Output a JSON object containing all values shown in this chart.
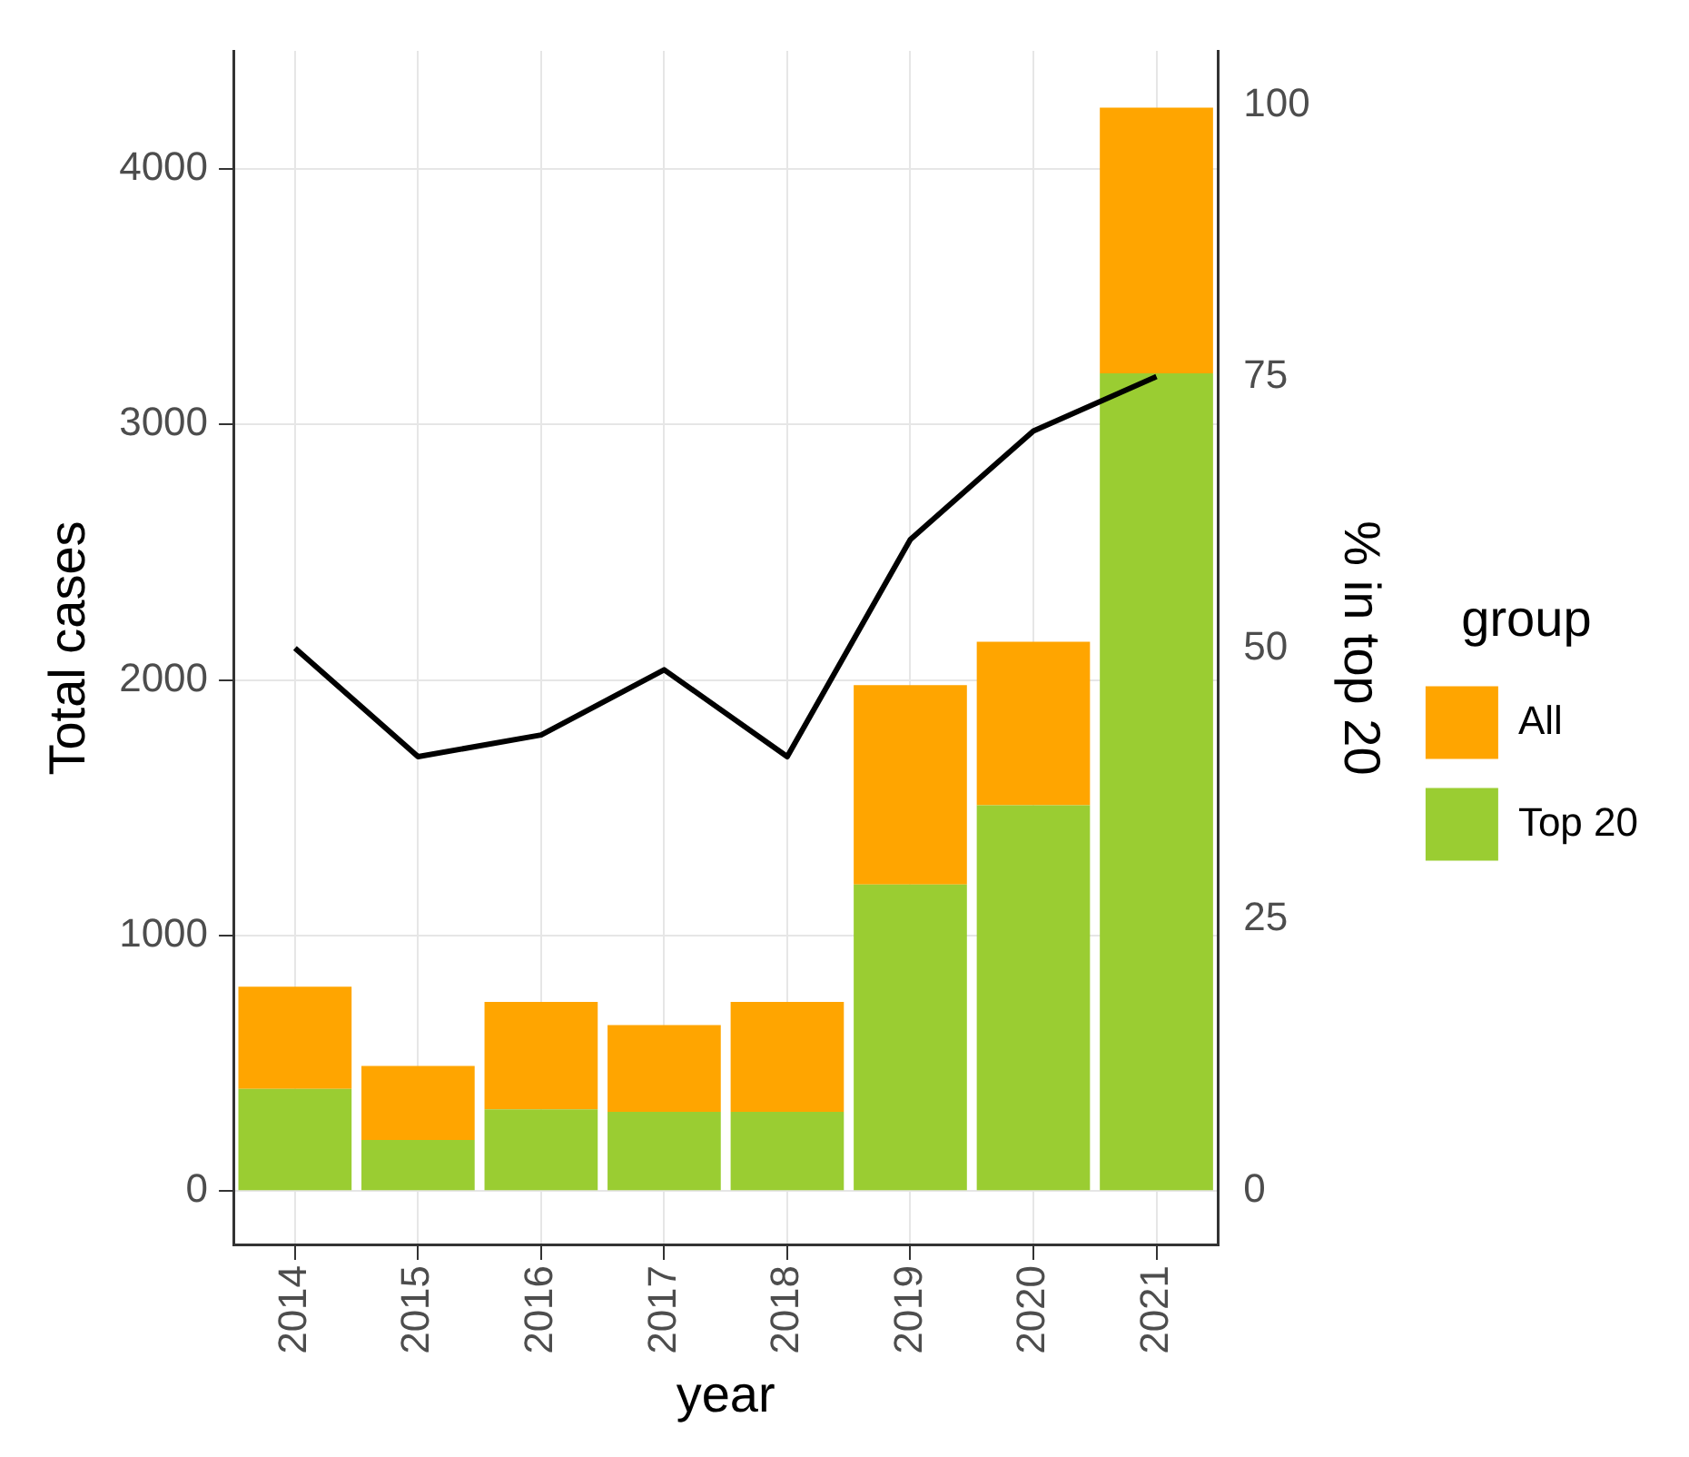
{
  "chart_data": {
    "type": "bar",
    "stacked": true,
    "xlabel": "year",
    "ylabel": "Total cases",
    "y2label": "% in top 20",
    "legend_title": "group",
    "categories": [
      "2014",
      "2015",
      "2016",
      "2017",
      "2018",
      "2019",
      "2020",
      "2021"
    ],
    "series": [
      {
        "name": "Top 20",
        "color": "#9acd32",
        "values": [
          400,
          200,
          320,
          310,
          310,
          1200,
          1510,
          3200
        ]
      },
      {
        "name": "All",
        "color": "#ffa500",
        "values": [
          400,
          290,
          420,
          340,
          430,
          780,
          640,
          1040
        ]
      },
      {
        "type": "line",
        "axis": "y2",
        "color": "#000000",
        "values": [
          50,
          40,
          42,
          48,
          40,
          60,
          70,
          75
        ]
      }
    ],
    "ylim": [
      -212,
      4462
    ],
    "yticks": [
      0,
      1000,
      2000,
      3000,
      4000
    ],
    "y2lim": [
      -5,
      105
    ],
    "y2ticks": [
      0,
      25,
      50,
      75,
      100
    ],
    "grid": true,
    "legend": "right",
    "marker": "none"
  }
}
